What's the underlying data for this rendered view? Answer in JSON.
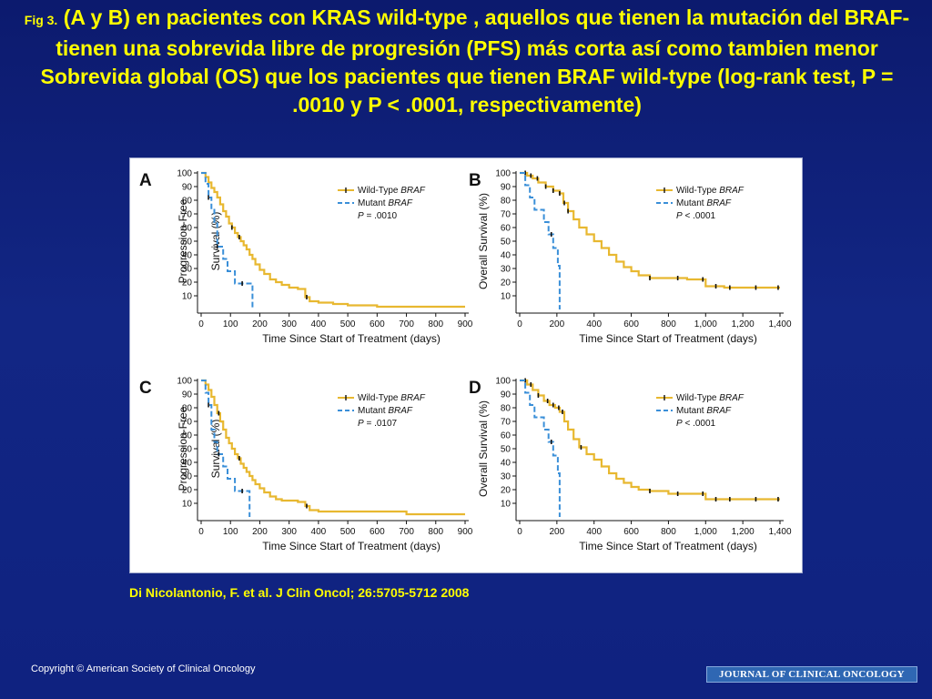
{
  "title": {
    "fig_label": "Fig 3.",
    "text": "(A y B) en pacientes con KRAS wild-type , aquellos que tienen la mutación del BRAF-tienen una sobrevida libre de progresión (PFS) más corta así como tambien menor Sobrevida global (OS) que los pacientes que tienen BRAF wild-type (log-rank test, P = .0010 y P < .0001, respectivamente)"
  },
  "citation": "Di Nicolantonio, F. et al. J Clin Oncol; 26:5705-5712 2008",
  "copyright": "Copyright © American Society of Clinical Oncology",
  "journal_banner": "JOURNAL OF CLINICAL ONCOLOGY",
  "colors": {
    "wild_type": "#e8b830",
    "mutant": "#3a8fd8",
    "censor": "#111111",
    "title_text": "#ffff00"
  },
  "chart_data": [
    {
      "panel": "A",
      "type": "line",
      "step": true,
      "xlabel": "Time Since Start of Treatment (days)",
      "ylabel": [
        "Progression-Free",
        "Survival (%)"
      ],
      "xlim": [
        0,
        900
      ],
      "ylim": [
        0,
        100
      ],
      "xticks": [
        0,
        100,
        200,
        300,
        400,
        500,
        600,
        700,
        800,
        900
      ],
      "xtick_labels": [
        "0",
        "100",
        "200",
        "300",
        "400",
        "500",
        "600",
        "700",
        "800",
        "900"
      ],
      "yticks": [
        10,
        20,
        30,
        40,
        50,
        60,
        70,
        80,
        90,
        100
      ],
      "p_value": "= .0010",
      "series": [
        {
          "name": "Wild-Type BRAF",
          "style": "solid",
          "x": [
            0,
            15,
            25,
            35,
            45,
            55,
            65,
            75,
            85,
            95,
            105,
            115,
            125,
            135,
            145,
            155,
            165,
            175,
            185,
            200,
            215,
            235,
            255,
            275,
            300,
            330,
            355,
            370,
            400,
            450,
            500,
            600,
            700,
            800,
            900
          ],
          "y": [
            100,
            97,
            93,
            89,
            86,
            82,
            77,
            72,
            68,
            63,
            60,
            56,
            53,
            50,
            47,
            44,
            40,
            37,
            33,
            29,
            26,
            22,
            20,
            18,
            16,
            15,
            9,
            6,
            5,
            4,
            3,
            2,
            2,
            2,
            2
          ],
          "censor_x": [
            105,
            130,
            360
          ]
        },
        {
          "name": "Mutant BRAF",
          "style": "dashed",
          "x": [
            0,
            15,
            25,
            35,
            45,
            55,
            75,
            90,
            115,
            165,
            175
          ],
          "y": [
            100,
            92,
            82,
            73,
            64,
            46,
            37,
            28,
            19,
            19,
            0
          ],
          "censor_x": [
            25,
            55,
            140
          ]
        }
      ]
    },
    {
      "panel": "B",
      "type": "line",
      "step": true,
      "xlabel": "Time Since Start of Treatment (days)",
      "ylabel": [
        "Overall Survival (%)"
      ],
      "xlim": [
        0,
        1400
      ],
      "ylim": [
        0,
        100
      ],
      "xticks": [
        0,
        200,
        400,
        600,
        800,
        1000,
        1200,
        1400
      ],
      "xtick_labels": [
        "0",
        "200",
        "400",
        "600",
        "800",
        "1,000",
        "1,200",
        "1,400"
      ],
      "yticks": [
        10,
        20,
        30,
        40,
        50,
        60,
        70,
        80,
        90,
        100
      ],
      "p_value": "< .0001",
      "series": [
        {
          "name": "Wild-Type BRAF",
          "style": "solid",
          "x": [
            0,
            40,
            70,
            100,
            140,
            180,
            215,
            235,
            260,
            290,
            320,
            360,
            400,
            440,
            480,
            520,
            560,
            600,
            640,
            700,
            800,
            900,
            1000,
            1100,
            1200,
            1300,
            1400
          ],
          "y": [
            100,
            98,
            96,
            93,
            90,
            87,
            85,
            78,
            72,
            66,
            60,
            55,
            50,
            45,
            40,
            35,
            31,
            28,
            25,
            23,
            23,
            22,
            17,
            16,
            16,
            16,
            16
          ],
          "censor_x": [
            30,
            60,
            95,
            140,
            180,
            215,
            240,
            260,
            700,
            850,
            985,
            1055,
            1130,
            1270,
            1390
          ]
        },
        {
          "name": "Mutant BRAF",
          "style": "dashed",
          "x": [
            0,
            30,
            55,
            80,
            105,
            130,
            155,
            180,
            205,
            215
          ],
          "y": [
            100,
            91,
            82,
            73,
            73,
            64,
            55,
            45,
            32,
            0
          ],
          "censor_x": [
            170
          ]
        }
      ]
    },
    {
      "panel": "C",
      "type": "line",
      "step": true,
      "xlabel": "Time Since Start of Treatment (days)",
      "ylabel": [
        "Progression-Free",
        "Survival (%)"
      ],
      "xlim": [
        0,
        900
      ],
      "ylim": [
        0,
        100
      ],
      "xticks": [
        0,
        100,
        200,
        300,
        400,
        500,
        600,
        700,
        800,
        900
      ],
      "xtick_labels": [
        "0",
        "100",
        "200",
        "300",
        "400",
        "500",
        "600",
        "700",
        "800",
        "900"
      ],
      "yticks": [
        10,
        20,
        30,
        40,
        50,
        60,
        70,
        80,
        90,
        100
      ],
      "p_value": "= .0107",
      "series": [
        {
          "name": "Wild-Type BRAF",
          "style": "solid",
          "x": [
            0,
            15,
            25,
            35,
            45,
            55,
            65,
            75,
            85,
            95,
            105,
            115,
            125,
            135,
            145,
            155,
            165,
            175,
            185,
            200,
            215,
            235,
            255,
            275,
            300,
            330,
            355,
            370,
            400,
            450,
            500,
            600,
            700,
            800,
            900
          ],
          "y": [
            100,
            97,
            93,
            88,
            82,
            76,
            70,
            64,
            58,
            54,
            50,
            46,
            43,
            39,
            36,
            33,
            30,
            27,
            24,
            21,
            18,
            15,
            13,
            12,
            12,
            11,
            8,
            5,
            4,
            4,
            4,
            4,
            2,
            2,
            2
          ],
          "censor_x": [
            60,
            130,
            360
          ]
        },
        {
          "name": "Mutant BRAF",
          "style": "dashed",
          "x": [
            0,
            15,
            25,
            35,
            45,
            55,
            75,
            90,
            115,
            150,
            165
          ],
          "y": [
            100,
            91,
            82,
            64,
            55,
            46,
            37,
            28,
            19,
            19,
            0
          ],
          "censor_x": [
            25,
            60,
            140
          ]
        }
      ]
    },
    {
      "panel": "D",
      "type": "line",
      "step": true,
      "xlabel": "Time Since Start of Treatment (days)",
      "ylabel": [
        "Overall Survival (%)"
      ],
      "xlim": [
        0,
        1400
      ],
      "ylim": [
        0,
        100
      ],
      "xticks": [
        0,
        200,
        400,
        600,
        800,
        1000,
        1200,
        1400
      ],
      "xtick_labels": [
        "0",
        "200",
        "400",
        "600",
        "800",
        "1,000",
        "1,200",
        "1,400"
      ],
      "yticks": [
        10,
        20,
        30,
        40,
        50,
        60,
        70,
        80,
        90,
        100
      ],
      "p_value": "< .0001",
      "series": [
        {
          "name": "Wild-Type BRAF",
          "style": "solid",
          "x": [
            0,
            40,
            70,
            100,
            130,
            160,
            190,
            215,
            240,
            260,
            290,
            320,
            360,
            400,
            440,
            480,
            520,
            560,
            600,
            640,
            700,
            800,
            900,
            1000,
            1100,
            1200,
            1300,
            1400
          ],
          "y": [
            100,
            97,
            93,
            89,
            85,
            82,
            80,
            77,
            70,
            64,
            57,
            51,
            46,
            42,
            37,
            32,
            28,
            25,
            22,
            20,
            19,
            17,
            17,
            13,
            13,
            13,
            13,
            13
          ],
          "censor_x": [
            30,
            60,
            100,
            150,
            180,
            210,
            230,
            330,
            700,
            850,
            985,
            1055,
            1130,
            1270,
            1390
          ]
        },
        {
          "name": "Mutant BRAF",
          "style": "dashed",
          "x": [
            0,
            30,
            55,
            80,
            105,
            130,
            155,
            180,
            205,
            215
          ],
          "y": [
            100,
            91,
            82,
            73,
            73,
            64,
            55,
            45,
            32,
            0
          ],
          "censor_x": [
            170
          ]
        }
      ]
    }
  ]
}
